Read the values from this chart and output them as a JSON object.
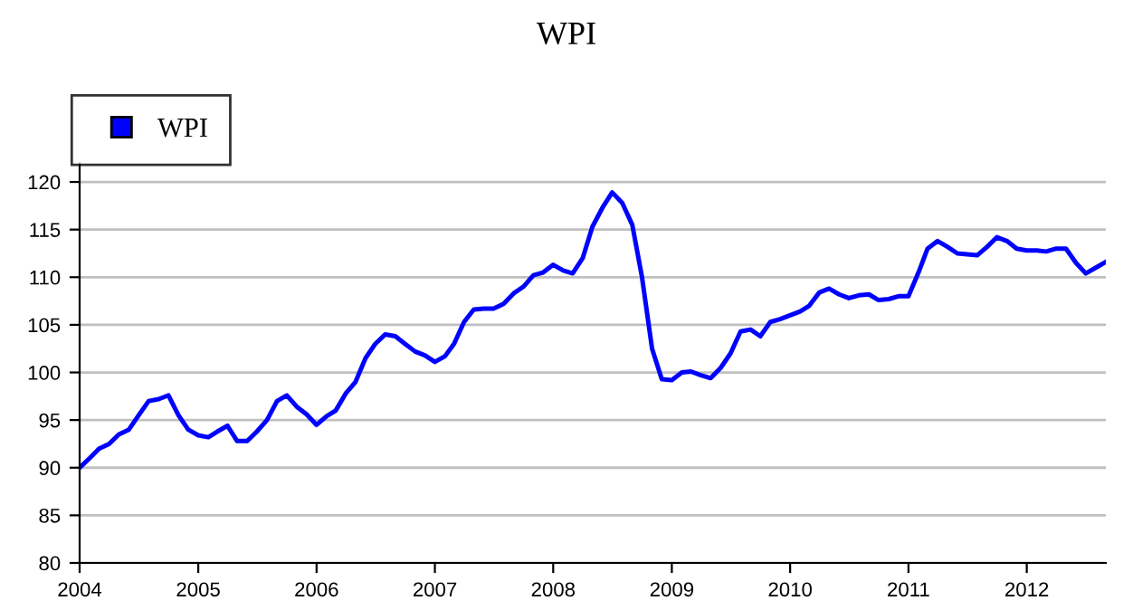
{
  "chart_data": {
    "type": "line",
    "title": "WPI",
    "x": [
      "2004-01",
      "2004-02",
      "2004-03",
      "2004-04",
      "2004-05",
      "2004-06",
      "2004-07",
      "2004-08",
      "2004-09",
      "2004-10",
      "2004-11",
      "2004-12",
      "2005-01",
      "2005-02",
      "2005-03",
      "2005-04",
      "2005-05",
      "2005-06",
      "2005-07",
      "2005-08",
      "2005-09",
      "2005-10",
      "2005-11",
      "2005-12",
      "2006-01",
      "2006-02",
      "2006-03",
      "2006-04",
      "2006-05",
      "2006-06",
      "2006-07",
      "2006-08",
      "2006-09",
      "2006-10",
      "2006-11",
      "2006-12",
      "2007-01",
      "2007-02",
      "2007-03",
      "2007-04",
      "2007-05",
      "2007-06",
      "2007-07",
      "2007-08",
      "2007-09",
      "2007-10",
      "2007-11",
      "2007-12",
      "2008-01",
      "2008-02",
      "2008-03",
      "2008-04",
      "2008-05",
      "2008-06",
      "2008-07",
      "2008-08",
      "2008-09",
      "2008-10",
      "2008-11",
      "2008-12",
      "2009-01",
      "2009-02",
      "2009-03",
      "2009-04",
      "2009-05",
      "2009-06",
      "2009-07",
      "2009-08",
      "2009-09",
      "2009-10",
      "2009-11",
      "2009-12",
      "2010-01",
      "2010-02",
      "2010-03",
      "2010-04",
      "2010-05",
      "2010-06",
      "2010-07",
      "2010-08",
      "2010-09",
      "2010-10",
      "2010-11",
      "2010-12",
      "2011-01",
      "2011-02",
      "2011-03",
      "2011-04",
      "2011-05",
      "2011-06",
      "2011-07",
      "2011-08",
      "2011-09",
      "2011-10",
      "2011-11",
      "2011-12",
      "2012-01",
      "2012-02",
      "2012-03",
      "2012-04",
      "2012-05",
      "2012-06",
      "2012-07",
      "2012-08",
      "2012-09"
    ],
    "series": [
      {
        "name": "WPI",
        "color": "#0000ff",
        "values": [
          90.0,
          91.0,
          92.0,
          92.5,
          93.5,
          94.0,
          95.5,
          97.0,
          97.2,
          97.6,
          95.5,
          94.0,
          93.4,
          93.2,
          93.8,
          94.4,
          92.8,
          92.8,
          93.8,
          95.0,
          97.0,
          97.6,
          96.4,
          95.6,
          94.5,
          95.4,
          96.0,
          97.8,
          99.0,
          101.5,
          103.0,
          104.0,
          103.8,
          103.0,
          102.2,
          101.8,
          101.1,
          101.7,
          103.0,
          105.3,
          106.6,
          106.7,
          106.7,
          107.2,
          108.3,
          109.0,
          110.2,
          110.5,
          111.3,
          110.7,
          110.4,
          112.0,
          115.3,
          117.3,
          118.9,
          117.8,
          115.5,
          110.0,
          102.5,
          99.3,
          99.2,
          100.0,
          100.1,
          99.7,
          99.4,
          100.5,
          102.0,
          104.3,
          104.5,
          103.8,
          105.3,
          105.6,
          106.0,
          106.4,
          107.0,
          108.4,
          108.8,
          108.2,
          107.8,
          108.1,
          108.2,
          107.6,
          107.7,
          108.0,
          108.0,
          110.5,
          113.0,
          113.8,
          113.2,
          112.5,
          112.4,
          112.3,
          113.2,
          114.2,
          113.8,
          113.0,
          112.8,
          112.8,
          112.7,
          113.0,
          113.0,
          111.5,
          110.4,
          111.0,
          111.6
        ]
      }
    ],
    "xlim": [
      "2004-01",
      "2012-09"
    ],
    "xticks": [
      {
        "value": "2004-01",
        "label": "2004"
      },
      {
        "value": "2005-01",
        "label": "2005"
      },
      {
        "value": "2006-01",
        "label": "2006"
      },
      {
        "value": "2007-01",
        "label": "2007"
      },
      {
        "value": "2008-01",
        "label": "2008"
      },
      {
        "value": "2009-01",
        "label": "2009"
      },
      {
        "value": "2010-01",
        "label": "2010"
      },
      {
        "value": "2011-01",
        "label": "2011"
      },
      {
        "value": "2012-01",
        "label": "2012"
      }
    ],
    "ylim": [
      80,
      122
    ],
    "yticks": [
      80,
      85,
      90,
      95,
      100,
      105,
      110,
      115,
      120
    ],
    "grid": "y",
    "legend": "top left",
    "marker": "none",
    "line_style": "solid"
  }
}
